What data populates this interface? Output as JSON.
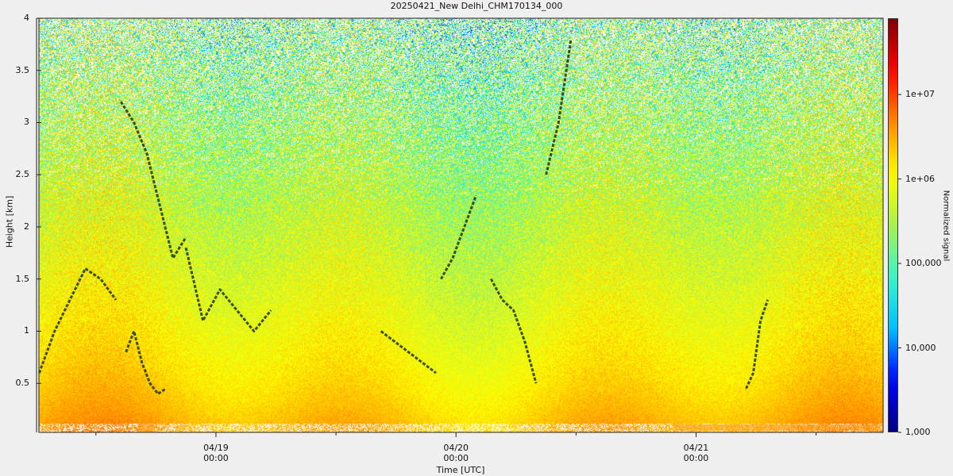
{
  "chart_data": {
    "type": "heatmap",
    "title": "20250421_New Delhi_CHM170134_000",
    "xlabel": "Time [UTC]",
    "ylabel": "Height [km]",
    "colorbar_label": "Normalized signal",
    "colorbar_scale": "log",
    "colorbar_range": [
      1000,
      80000000
    ],
    "colorbar_ticks": [
      "1,000",
      "10,000",
      "100,000",
      "1e+06",
      "1e+07"
    ],
    "colormap": [
      "#00007f",
      "#0000ff",
      "#00bfff",
      "#3cf5c8",
      "#a8f050",
      "#ffff00",
      "#ff8800",
      "#ff0000",
      "#7f0000"
    ],
    "ylim": [
      0.03,
      4.0
    ],
    "y_ticks": [
      "0.5",
      "1",
      "1.5",
      "2",
      "2.5",
      "3",
      "3.5",
      "4"
    ],
    "xlim_hours_from_0419": [
      -17.7,
      66.7
    ],
    "x_ticks": [
      {
        "date": "04/19",
        "time": "00:00"
      },
      {
        "date": "04/20",
        "time": "00:00"
      },
      {
        "date": "04/21",
        "time": "00:00"
      }
    ],
    "layer_markers": [
      {
        "start_time": "04/18 06:20",
        "end_time": "04/18 14:00",
        "height_km": [
          0.6,
          1.0,
          1.3,
          1.6,
          1.5,
          1.3
        ]
      },
      {
        "start_time": "04/18 14:30",
        "end_time": "04/18 21:00",
        "height_km": [
          3.2,
          3.0,
          2.7,
          2.2,
          1.7,
          1.9
        ]
      },
      {
        "start_time": "04/18 21:00",
        "end_time": "04/19 05:30",
        "height_km": [
          1.8,
          1.1,
          1.4,
          1.2,
          1.0,
          1.2
        ]
      },
      {
        "start_time": "04/18 15:00",
        "end_time": "04/18 19:00",
        "height_km": [
          0.8,
          1.0,
          0.7,
          0.5,
          0.4,
          0.45
        ]
      },
      {
        "start_time": "04/19 16:30",
        "end_time": "04/19 22:00",
        "height_km": [
          1.0,
          0.8,
          0.6
        ]
      },
      {
        "start_time": "04/19 22:30",
        "end_time": "04/20 02:00",
        "height_km": [
          1.5,
          1.7,
          2.0,
          2.3
        ]
      },
      {
        "start_time": "04/20 03:30",
        "end_time": "04/20 08:00",
        "height_km": [
          1.5,
          1.3,
          1.2,
          0.9,
          0.5
        ]
      },
      {
        "start_time": "04/20 09:00",
        "end_time": "04/20 11:30",
        "height_km": [
          2.5,
          3.0,
          3.8
        ]
      },
      {
        "start_time": "04/21 05:00",
        "end_time": "04/21 07:10",
        "height_km": [
          0.45,
          0.6,
          1.1,
          1.3
        ]
      }
    ]
  }
}
